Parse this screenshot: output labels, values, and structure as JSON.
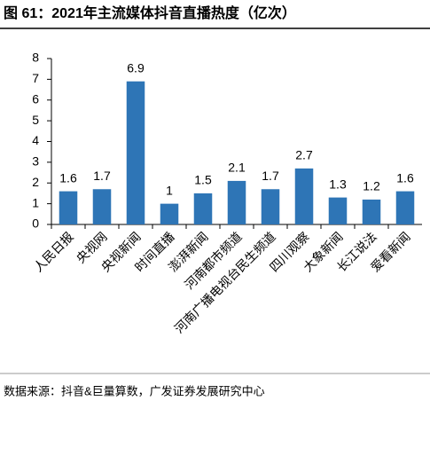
{
  "chart_data": {
    "type": "bar",
    "title": "图 61：2021年主流媒体抖音直播热度（亿次）",
    "source": "数据来源：抖音&巨量算数，广发证券发展研究中心",
    "categories": [
      "人民日报",
      "央视网",
      "央视新闻",
      "时间直播",
      "澎湃新闻",
      "河南都市频道",
      "河南广播电视台民生频道",
      "四川观察",
      "大象新闻",
      "长江说法",
      "爱看新闻"
    ],
    "values": [
      1.6,
      1.7,
      6.9,
      1,
      1.5,
      2.1,
      1.7,
      2.7,
      1.3,
      1.2,
      1.6
    ],
    "color": "#2e75b6",
    "ylim": [
      0,
      8
    ],
    "yticks": [
      0,
      1,
      2,
      3,
      4,
      5,
      6,
      7,
      8
    ],
    "grid": false
  }
}
